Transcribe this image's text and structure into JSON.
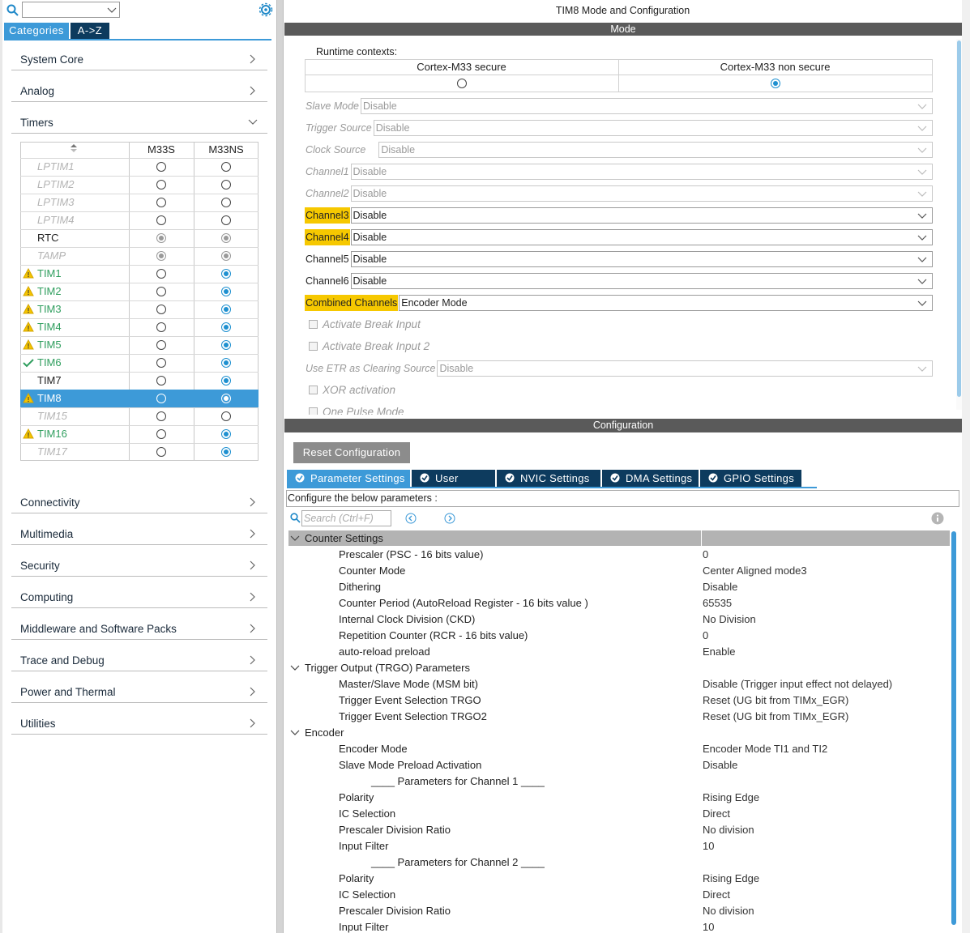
{
  "sidebar": {
    "tabs": [
      "Categories",
      "A->Z"
    ],
    "active_tab": 0,
    "categories_top": [
      {
        "name": "System Core",
        "expanded": false
      },
      {
        "name": "Analog",
        "expanded": false
      },
      {
        "name": "Timers",
        "expanded": true
      }
    ],
    "timer_table": {
      "headers": [
        "M33S",
        "M33NS"
      ],
      "rows": [
        {
          "name": "LPTIM1",
          "state": "disabled",
          "m33s": "off",
          "m33ns": "off"
        },
        {
          "name": "LPTIM2",
          "state": "disabled",
          "m33s": "off",
          "m33ns": "off"
        },
        {
          "name": "LPTIM3",
          "state": "disabled",
          "m33s": "off",
          "m33ns": "off"
        },
        {
          "name": "LPTIM4",
          "state": "disabled",
          "m33s": "off",
          "m33ns": "off"
        },
        {
          "name": "RTC",
          "state": "normal",
          "m33s": "locked",
          "m33ns": "locked"
        },
        {
          "name": "TAMP",
          "state": "disabled",
          "m33s": "locked",
          "m33ns": "locked"
        },
        {
          "name": "TIM1",
          "state": "warning",
          "m33s": "off",
          "m33ns": "on"
        },
        {
          "name": "TIM2",
          "state": "warning",
          "m33s": "off",
          "m33ns": "on"
        },
        {
          "name": "TIM3",
          "state": "warning",
          "m33s": "off",
          "m33ns": "on"
        },
        {
          "name": "TIM4",
          "state": "warning",
          "m33s": "off",
          "m33ns": "on"
        },
        {
          "name": "TIM5",
          "state": "warning",
          "m33s": "off",
          "m33ns": "on"
        },
        {
          "name": "TIM6",
          "state": "ok",
          "m33s": "off",
          "m33ns": "on"
        },
        {
          "name": "TIM7",
          "state": "normal",
          "m33s": "off",
          "m33ns": "on"
        },
        {
          "name": "TIM8",
          "state": "warning",
          "selected": true,
          "m33s": "off",
          "m33ns": "on"
        },
        {
          "name": "TIM15",
          "state": "disabled",
          "m33s": "off",
          "m33ns": "off"
        },
        {
          "name": "TIM16",
          "state": "warning",
          "m33s": "off",
          "m33ns": "on"
        },
        {
          "name": "TIM17",
          "state": "disabled",
          "m33s": "off",
          "m33ns": "on"
        }
      ]
    },
    "categories_bottom": [
      "Connectivity",
      "Multimedia",
      "Security",
      "Computing",
      "Middleware and Software Packs",
      "Trace and Debug",
      "Power and Thermal",
      "Utilities"
    ]
  },
  "mode_panel": {
    "title": "TIM8 Mode and Configuration",
    "header": "Mode",
    "runtime_label": "Runtime contexts:",
    "contexts": [
      {
        "name": "Cortex-M33 secure",
        "checked": false
      },
      {
        "name": "Cortex-M33 non secure",
        "checked": true
      }
    ],
    "fields": [
      {
        "label": "Slave Mode",
        "value": "Disable",
        "enabled": false,
        "highlight": false
      },
      {
        "label": "Trigger Source",
        "value": "Disable",
        "enabled": false,
        "highlight": false
      },
      {
        "label": "Clock Source",
        "value": "Disable",
        "enabled": false,
        "highlight": false
      },
      {
        "label": "Channel1",
        "value": "Disable",
        "enabled": false,
        "highlight": false
      },
      {
        "label": "Channel2",
        "value": "Disable",
        "enabled": false,
        "highlight": false
      },
      {
        "label": "Channel3",
        "value": "Disable",
        "enabled": true,
        "highlight": true
      },
      {
        "label": "Channel4",
        "value": "Disable",
        "enabled": true,
        "highlight": true
      },
      {
        "label": "Channel5",
        "value": "Disable",
        "enabled": true,
        "highlight": false
      },
      {
        "label": "Channel6",
        "value": "Disable",
        "enabled": true,
        "highlight": false
      },
      {
        "label": "Combined Channels",
        "value": "Encoder Mode",
        "enabled": true,
        "highlight": true
      },
      {
        "label": "Activate Break Input",
        "checkbox": true,
        "enabled": false
      },
      {
        "label": "Activate Break Input 2",
        "checkbox": true,
        "enabled": false
      },
      {
        "label": "Use ETR as Clearing Source",
        "value": "Disable",
        "enabled": false,
        "highlight": false
      },
      {
        "label": "XOR activation",
        "checkbox": true,
        "enabled": false
      },
      {
        "label": "One Pulse Mode",
        "checkbox": true,
        "enabled": false
      }
    ]
  },
  "config_panel": {
    "header": "Configuration",
    "reset_button": "Reset Configuration",
    "tabs": [
      "Parameter Settings",
      "User Constants",
      "NVIC Settings",
      "DMA Settings",
      "GPIO Settings"
    ],
    "active_tab": 0,
    "hint": "Configure the below parameters :",
    "search_placeholder": "Search (Ctrl+F)",
    "groups": [
      {
        "name": "Counter Settings",
        "selected": true,
        "items": [
          {
            "label": "Prescaler (PSC - 16 bits value)",
            "value": "0"
          },
          {
            "label": "Counter Mode",
            "value": "Center Aligned mode3"
          },
          {
            "label": "Dithering",
            "value": "Disable"
          },
          {
            "label": "Counter Period (AutoReload Register - 16 bits value )",
            "value": "65535"
          },
          {
            "label": "Internal Clock Division (CKD)",
            "value": "No Division"
          },
          {
            "label": "Repetition Counter (RCR - 16 bits value)",
            "value": "0"
          },
          {
            "label": "auto-reload preload",
            "value": "Enable"
          }
        ]
      },
      {
        "name": "Trigger Output (TRGO) Parameters",
        "selected": false,
        "items": [
          {
            "label": "Master/Slave Mode (MSM bit)",
            "value": "Disable (Trigger input effect not delayed)"
          },
          {
            "label": "Trigger Event Selection TRGO",
            "value": "Reset (UG bit from TIMx_EGR)"
          },
          {
            "label": "Trigger Event Selection TRGO2",
            "value": "Reset (UG bit from TIMx_EGR)"
          }
        ]
      },
      {
        "name": "Encoder",
        "selected": false,
        "items": [
          {
            "label": "Encoder Mode",
            "value": "Encoder Mode TI1 and TI2"
          },
          {
            "label": "Slave Mode Preload Activation",
            "value": "Disable"
          },
          {
            "label": "____ Parameters for Channel 1 ____"
          },
          {
            "label": "Polarity",
            "value": "Rising Edge"
          },
          {
            "label": "IC Selection",
            "value": "Direct"
          },
          {
            "label": "Prescaler Division Ratio",
            "value": "No division"
          },
          {
            "label": "Input Filter",
            "value": "10"
          },
          {
            "label": "____ Parameters for Channel 2 ____"
          },
          {
            "label": "Polarity",
            "value": "Rising Edge"
          },
          {
            "label": "IC Selection",
            "value": "Direct"
          },
          {
            "label": "Prescaler Division Ratio",
            "value": "No division"
          },
          {
            "label": "Input Filter",
            "value": "10"
          }
        ]
      }
    ]
  }
}
